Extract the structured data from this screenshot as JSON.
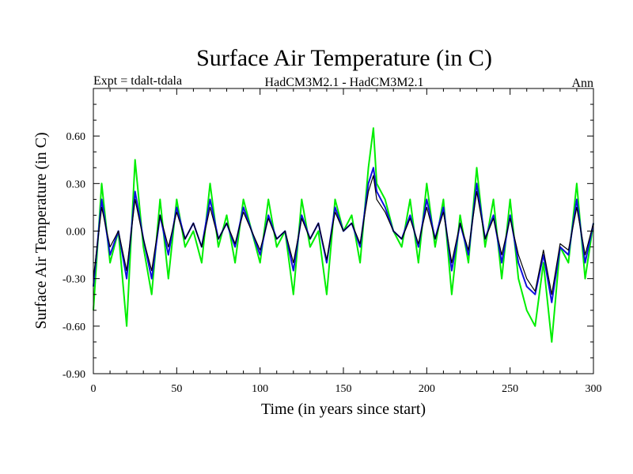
{
  "chart_data": {
    "type": "line",
    "title": "Surface Air Temperature (in C)",
    "subtitle_left": "Expt = tdalt-tdala",
    "subtitle_center": "HadCM3M2.1 - HadCM3M2.1",
    "subtitle_right": "Ann",
    "xlabel": "Time (in years since start)",
    "ylabel": "Surface Air Temperature (in C)",
    "xlim": [
      0,
      300
    ],
    "ylim": [
      -0.9,
      0.9
    ],
    "xticks": [
      0,
      50,
      100,
      150,
      200,
      250,
      300
    ],
    "xtick_labels": [
      "0",
      "50",
      "100",
      "150",
      "200",
      "250",
      "300"
    ],
    "yticks": [
      -0.9,
      -0.6,
      -0.3,
      0.0,
      0.3,
      0.6
    ],
    "ytick_labels": [
      "-0.90",
      "-0.60",
      "-0.30",
      "0.00",
      "0.30",
      "0.60"
    ],
    "series": [
      {
        "name": "green",
        "color": "#00ee00",
        "x": [
          0,
          5,
          10,
          15,
          20,
          25,
          30,
          35,
          40,
          45,
          50,
          55,
          60,
          65,
          70,
          75,
          80,
          85,
          90,
          95,
          100,
          105,
          110,
          115,
          120,
          125,
          130,
          135,
          140,
          145,
          150,
          155,
          160,
          165,
          168,
          170,
          175,
          180,
          185,
          190,
          195,
          200,
          205,
          210,
          215,
          220,
          225,
          230,
          235,
          240,
          245,
          250,
          255,
          260,
          265,
          270,
          275,
          280,
          285,
          290,
          295,
          300
        ],
        "values": [
          -0.5,
          0.3,
          -0.2,
          0.0,
          -0.6,
          0.45,
          -0.1,
          -0.4,
          0.2,
          -0.3,
          0.2,
          -0.1,
          0.0,
          -0.2,
          0.3,
          -0.1,
          0.1,
          -0.2,
          0.2,
          0.0,
          -0.2,
          0.2,
          -0.1,
          0.0,
          -0.4,
          0.2,
          -0.1,
          0.0,
          -0.4,
          0.2,
          0.0,
          0.1,
          -0.2,
          0.4,
          0.65,
          0.3,
          0.2,
          0.0,
          -0.1,
          0.2,
          -0.2,
          0.3,
          -0.1,
          0.2,
          -0.4,
          0.1,
          -0.2,
          0.4,
          -0.1,
          0.2,
          -0.3,
          0.2,
          -0.3,
          -0.5,
          -0.6,
          -0.2,
          -0.7,
          -0.1,
          -0.2,
          0.3,
          -0.3,
          0.05
        ]
      },
      {
        "name": "blue",
        "color": "#1010dd",
        "x": [
          0,
          5,
          10,
          15,
          20,
          25,
          30,
          35,
          40,
          45,
          50,
          55,
          60,
          65,
          70,
          75,
          80,
          85,
          90,
          95,
          100,
          105,
          110,
          115,
          120,
          125,
          130,
          135,
          140,
          145,
          150,
          155,
          160,
          165,
          168,
          170,
          175,
          180,
          185,
          190,
          195,
          200,
          205,
          210,
          215,
          220,
          225,
          230,
          235,
          240,
          245,
          250,
          255,
          260,
          265,
          270,
          275,
          280,
          285,
          290,
          295,
          300
        ],
        "values": [
          -0.35,
          0.2,
          -0.15,
          0.0,
          -0.3,
          0.25,
          -0.05,
          -0.3,
          0.1,
          -0.15,
          0.15,
          -0.05,
          0.05,
          -0.1,
          0.2,
          -0.05,
          0.05,
          -0.1,
          0.15,
          0.0,
          -0.15,
          0.1,
          -0.05,
          0.0,
          -0.25,
          0.1,
          -0.05,
          0.05,
          -0.2,
          0.15,
          0.0,
          0.05,
          -0.1,
          0.3,
          0.4,
          0.25,
          0.15,
          0.0,
          -0.05,
          0.1,
          -0.1,
          0.2,
          -0.05,
          0.15,
          -0.25,
          0.05,
          -0.15,
          0.3,
          -0.05,
          0.1,
          -0.2,
          0.1,
          -0.2,
          -0.35,
          -0.4,
          -0.15,
          -0.45,
          -0.1,
          -0.15,
          0.2,
          -0.2,
          0.05
        ]
      },
      {
        "name": "black",
        "color": "#000000",
        "x": [
          0,
          5,
          10,
          15,
          20,
          25,
          30,
          35,
          40,
          45,
          50,
          55,
          60,
          65,
          70,
          75,
          80,
          85,
          90,
          95,
          100,
          105,
          110,
          115,
          120,
          125,
          130,
          135,
          140,
          145,
          150,
          155,
          160,
          165,
          168,
          170,
          175,
          180,
          185,
          190,
          195,
          200,
          205,
          210,
          215,
          220,
          225,
          230,
          235,
          240,
          245,
          250,
          255,
          260,
          265,
          270,
          275,
          280,
          285,
          290,
          295,
          300
        ],
        "values": [
          -0.3,
          0.15,
          -0.1,
          0.0,
          -0.25,
          0.2,
          -0.05,
          -0.25,
          0.1,
          -0.1,
          0.12,
          -0.05,
          0.05,
          -0.1,
          0.15,
          -0.05,
          0.05,
          -0.08,
          0.12,
          0.0,
          -0.12,
          0.08,
          -0.05,
          0.0,
          -0.2,
          0.08,
          -0.05,
          0.05,
          -0.18,
          0.12,
          0.0,
          0.05,
          -0.08,
          0.25,
          0.35,
          0.2,
          0.12,
          0.0,
          -0.05,
          0.08,
          -0.08,
          0.15,
          -0.05,
          0.12,
          -0.2,
          0.05,
          -0.12,
          0.25,
          -0.05,
          0.08,
          -0.15,
          0.08,
          -0.15,
          -0.3,
          -0.38,
          -0.12,
          -0.4,
          -0.08,
          -0.12,
          0.15,
          -0.15,
          0.05
        ]
      }
    ]
  }
}
